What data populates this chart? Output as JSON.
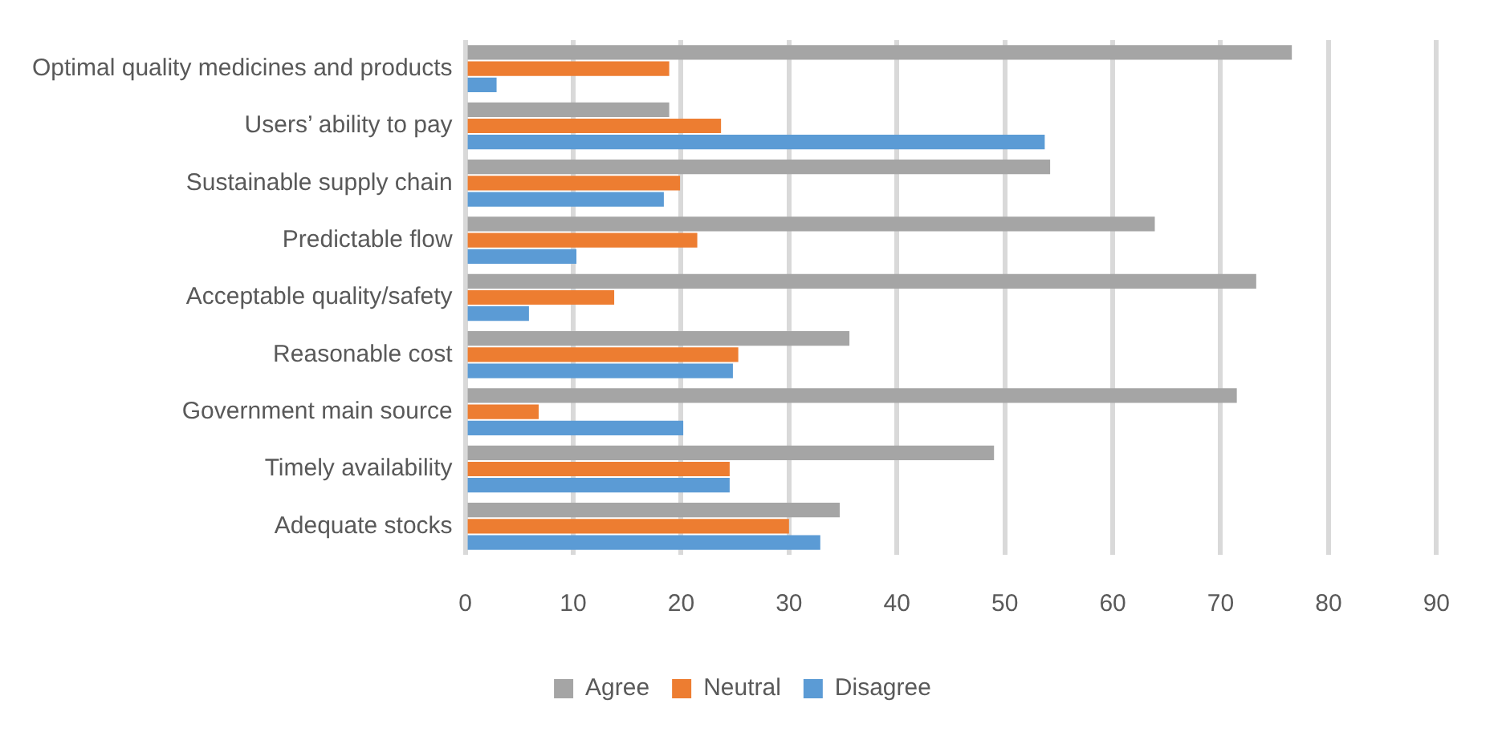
{
  "chart_data": {
    "type": "bar",
    "orientation": "horizontal",
    "categories": [
      "Optimal quality medicines and products",
      "Users’ ability to pay",
      "Sustainable supply chain",
      "Predictable flow",
      "Acceptable quality/safety",
      "Reasonable cost",
      "Government main source",
      "Timely availability",
      "Adequate stocks"
    ],
    "series": [
      {
        "name": "Agree",
        "color": "#a5a5a5",
        "values": [
          76.6,
          18.9,
          54.2,
          63.9,
          73.3,
          35.6,
          71.5,
          49,
          34.7
        ]
      },
      {
        "name": "Neutral",
        "color": "#ed7d31",
        "values": [
          18.9,
          23.7,
          19.9,
          21.5,
          13.8,
          25.3,
          6.8,
          24.5,
          30
        ]
      },
      {
        "name": "Disagree",
        "color": "#5b9bd5",
        "values": [
          2.9,
          53.7,
          18.4,
          10.3,
          5.9,
          24.8,
          20.2,
          24.5,
          32.9
        ]
      }
    ],
    "xlim": [
      0,
      90
    ],
    "xticks": [
      0,
      10,
      20,
      30,
      40,
      50,
      60,
      70,
      80,
      90
    ],
    "grid": "x",
    "legend": "bottom"
  }
}
